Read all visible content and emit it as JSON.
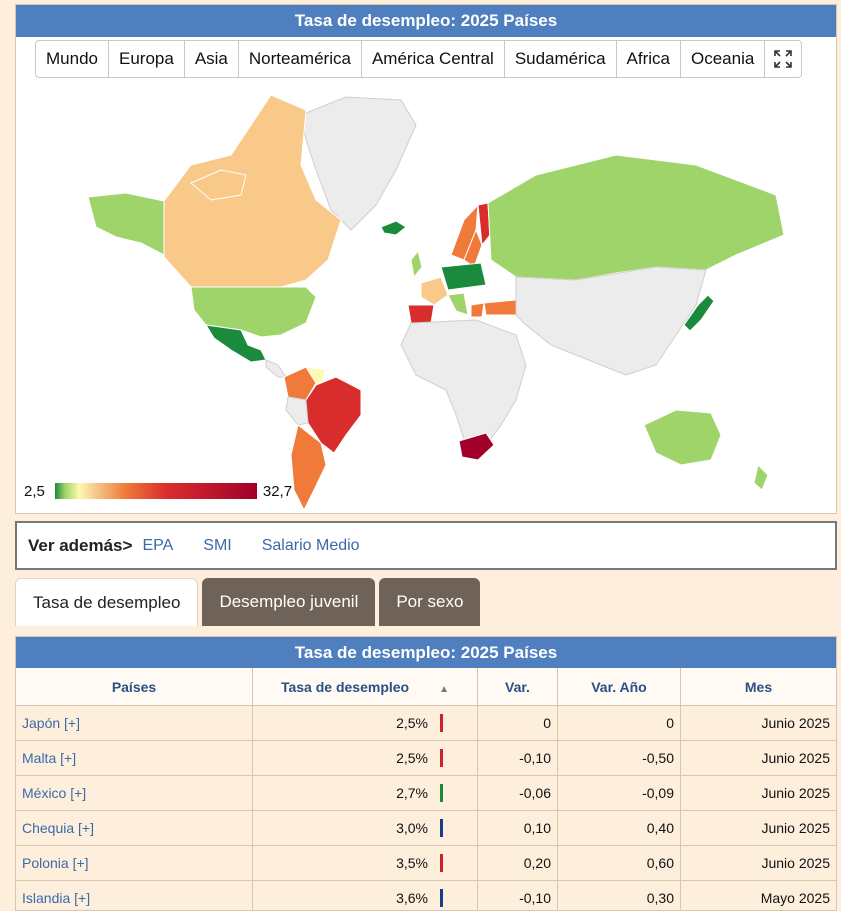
{
  "map_panel": {
    "title": "Tasa de desempleo: 2025 Países",
    "region_tabs": [
      "Mundo",
      "Europa",
      "Asia",
      "Norteamérica",
      "América Central",
      "Sudamérica",
      "Africa",
      "Oceania"
    ],
    "expand_icon": "fullscreen-icon",
    "legend": {
      "min": "2,5",
      "max": "32,7"
    },
    "colors": {
      "green_dark": "#1a8a3c",
      "green": "#9fd46a",
      "yellow": "#fff8b0",
      "orange_light": "#f9c98a",
      "orange": "#ef7a3a",
      "red": "#d92d2d",
      "red_dark": "#a0002a",
      "no_data": "#ececec"
    }
  },
  "see_also": {
    "label": "Ver además>",
    "links": [
      "EPA",
      "SMI",
      "Salario Medio"
    ]
  },
  "tabs": [
    "Tasa de desempleo",
    "Desempleo juvenil",
    "Por sexo"
  ],
  "table": {
    "title": "Tasa de desempleo: 2025 Países",
    "headers": [
      "Países",
      "Tasa de desempleo",
      "Var.",
      "Var. Año",
      "Mes"
    ],
    "rows": [
      {
        "country": "Japón [+]",
        "rate": "2,5%",
        "var": "0",
        "var_year": "0",
        "month": "Junio 2025",
        "mark_color": "#d0202a"
      },
      {
        "country": "Malta [+]",
        "rate": "2,5%",
        "var": "-0,10",
        "var_year": "-0,50",
        "month": "Junio 2025",
        "mark_color": "#d0202a"
      },
      {
        "country": "México [+]",
        "rate": "2,7%",
        "var": "-0,06",
        "var_year": "-0,09",
        "month": "Junio 2025",
        "mark_color": "#1a8a3c"
      },
      {
        "country": "Chequia [+]",
        "rate": "3,0%",
        "var": "0,10",
        "var_year": "0,40",
        "month": "Junio 2025",
        "mark_color": "#1a3a8a"
      },
      {
        "country": "Polonia [+]",
        "rate": "3,5%",
        "var": "0,20",
        "var_year": "0,60",
        "month": "Junio 2025",
        "mark_color": "#d0202a"
      },
      {
        "country": "Islandia [+]",
        "rate": "3,6%",
        "var": "-0,10",
        "var_year": "0,30",
        "month": "Mayo 2025",
        "mark_color": "#1a3a8a"
      }
    ]
  }
}
